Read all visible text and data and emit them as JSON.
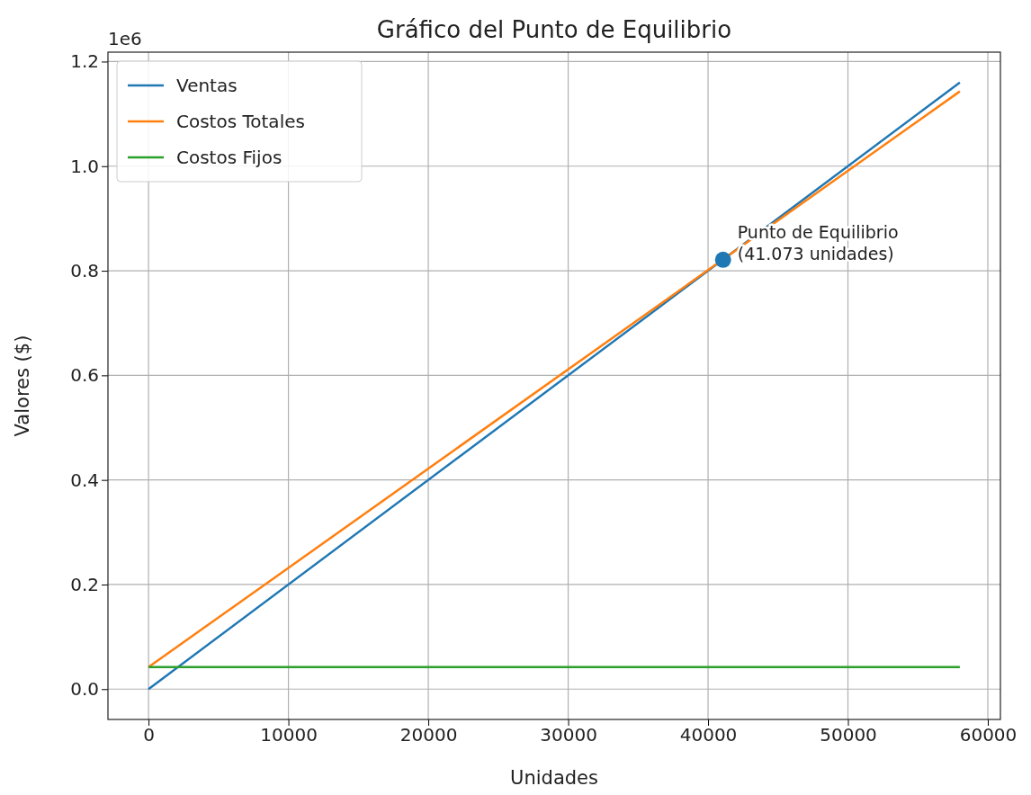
{
  "chart_data": {
    "type": "line",
    "title": "Gráfico del Punto de Equilibrio",
    "xlabel": "Unidades",
    "ylabel": "Valores ($)",
    "xlim": [
      -2900,
      60900
    ],
    "xticks": [
      0,
      10000,
      20000,
      30000,
      40000,
      50000,
      60000
    ],
    "ylim": [
      -0.058,
      1.218
    ],
    "yticks": [
      {
        "value": 0,
        "label": "0.0"
      },
      0.2,
      0.4,
      0.6,
      0.8,
      {
        "value": 1,
        "label": "1.0"
      },
      1.2
    ],
    "series": [
      {
        "name": "Ventas",
        "color": "#1f77b4",
        "x": [
          0,
          58000
        ],
        "values": [
          0,
          1.16
        ]
      },
      {
        "name": "Costos Totales",
        "color": "#ff7f0e",
        "x": [
          0,
          58000
        ],
        "values": [
          0.042,
          1.143
        ]
      },
      {
        "name": "Costos Fijos",
        "color": "#2ca02c",
        "x": [
          0,
          58000
        ],
        "values": [
          0.042,
          0.042
        ]
      },
      {
        "type": "scatter",
        "marker": "circle",
        "color": "#1f77b4",
        "x": [
          41073
        ],
        "values": [
          0.821
        ]
      }
    ],
    "annotations": [
      "1e6",
      {
        "text": "Punto de Equilibrio\n(41.073 unidades)",
        "x": 41073,
        "y": 0.821
      }
    ],
    "grid": true,
    "legend": "top left",
    "marker": "none",
    "line_style": "solid"
  }
}
